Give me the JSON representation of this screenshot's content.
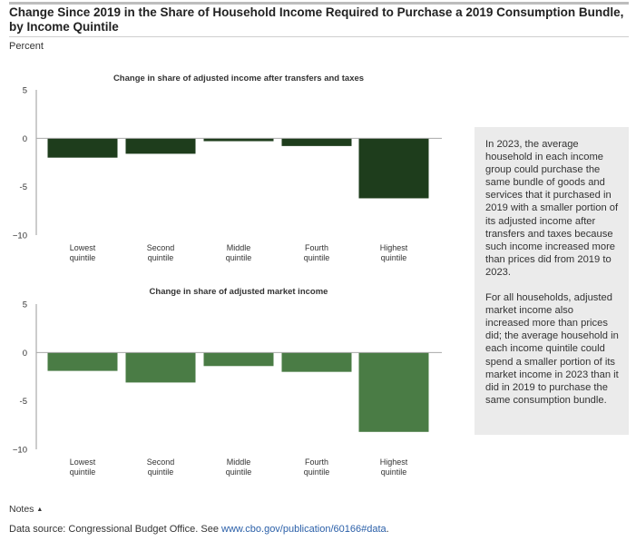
{
  "title": "Change Since 2019 in the Share of Household Income Required to Purchase a 2019 Consumption Bundle, by Income Quintile",
  "units_label": "Percent",
  "chart_data": [
    {
      "type": "bar",
      "title": "Change in share of adjusted income after transfers and taxes",
      "categories": [
        [
          "Lowest",
          "quintile"
        ],
        [
          "Second",
          "quintile"
        ],
        [
          "Middle",
          "quintile"
        ],
        [
          "Fourth",
          "quintile"
        ],
        [
          "Highest",
          "quintile"
        ]
      ],
      "values": [
        -2.0,
        -1.6,
        -0.3,
        -0.8,
        -6.2
      ],
      "ylim": [
        -10,
        5
      ],
      "yticks": [
        5,
        0,
        -5,
        -10
      ],
      "ytick_labels": [
        "5",
        "0",
        "-5",
        "−10"
      ],
      "color": "#1e3d1c",
      "grid": false
    },
    {
      "type": "bar",
      "title": "Change in share of adjusted market income",
      "categories": [
        [
          "Lowest",
          "quintile"
        ],
        [
          "Second",
          "quintile"
        ],
        [
          "Middle",
          "quintile"
        ],
        [
          "Fourth",
          "quintile"
        ],
        [
          "Highest",
          "quintile"
        ]
      ],
      "values": [
        -1.9,
        -3.1,
        -1.4,
        -2.0,
        -8.2
      ],
      "ylim": [
        -10,
        5
      ],
      "yticks": [
        5,
        0,
        -5,
        -10
      ],
      "ytick_labels": [
        "5",
        "0",
        "-5",
        "−10"
      ],
      "color": "#4a7c45",
      "grid": false
    }
  ],
  "sidebar": {
    "paragraphs": [
      "In 2023, the average household in each income group could purchase the same bundle of goods and services that it purchased in 2019 with a smaller portion of its adjusted income after transfers and taxes because such income increased more than prices did from 2019 to 2023.",
      "For all households, adjusted market income also increased more than prices did; the average household in each income quintile could spend a smaller portion of its market income in 2023 than it did in 2019 to purchase the same consumption bundle."
    ]
  },
  "notes_label": "Notes",
  "notes_icon": "triangle-up-icon",
  "source": {
    "prefix": "Data source: Congressional Budget Office. See ",
    "link": "www.cbo.gov/publication/60166#data",
    "suffix": "."
  }
}
